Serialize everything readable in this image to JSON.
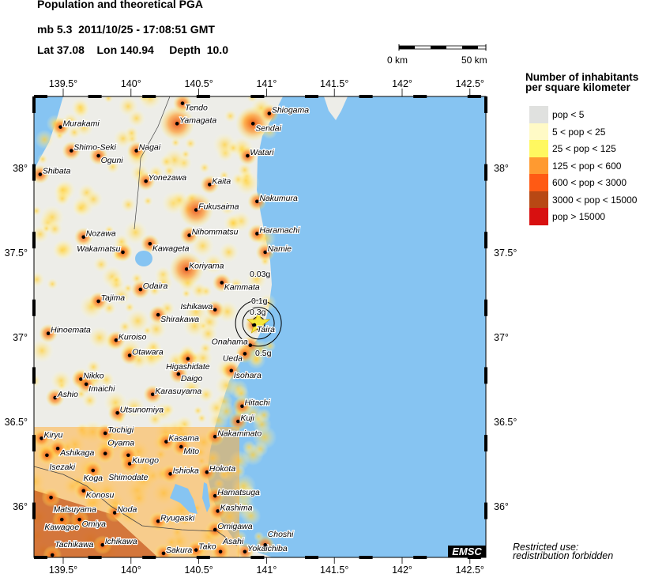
{
  "header": {
    "title": "Population and theoretical PGA",
    "event_line": "mb 5.3  2011/10/25 - 17:08:51 GMT",
    "location_line": "Lat 37.08    Lon 140.94     Depth  10.0"
  },
  "scale_bar": {
    "start_label": "0 km",
    "end_label": "50 km"
  },
  "map": {
    "lon_range": [
      139.28,
      142.62
    ],
    "lat_range": [
      35.69,
      38.42
    ],
    "lon_ticks": [
      139.5,
      140,
      140.5,
      141,
      141.5,
      142,
      142.5
    ],
    "lon_tick_labels": [
      "139.5°",
      "140°",
      "140.5°",
      "141°",
      "141.5°",
      "142°",
      "142.5°"
    ],
    "lat_ticks": [
      38,
      37.5,
      37,
      36.5,
      36
    ],
    "lat_tick_labels": [
      "38°",
      "37.5°",
      "37°",
      "36.5°",
      "36°"
    ],
    "ocean_color": "#86C4F2",
    "land_color": "#EDEDE8",
    "epicenter": {
      "lon": 140.94,
      "lat": 37.08,
      "icon": "star-icon",
      "color": "#F5E63A"
    },
    "pga_contours": [
      "0.03g",
      "0.1g",
      "0.3g",
      "0.5g"
    ],
    "cities": [
      {
        "name": "Murakami",
        "lon": 139.48,
        "lat": 38.24
      },
      {
        "name": "Shimo-Seki",
        "lon": 139.56,
        "lat": 38.1
      },
      {
        "name": "Oguni",
        "lon": 139.76,
        "lat": 38.07
      },
      {
        "name": "Shibata",
        "lon": 139.33,
        "lat": 37.96
      },
      {
        "name": "Nagai",
        "lon": 140.04,
        "lat": 38.1
      },
      {
        "name": "Yonezawa",
        "lon": 140.11,
        "lat": 37.92
      },
      {
        "name": "Tendo",
        "lon": 140.38,
        "lat": 38.38
      },
      {
        "name": "Yamagata",
        "lon": 140.34,
        "lat": 38.26
      },
      {
        "name": "Sendai",
        "lon": 140.9,
        "lat": 38.26
      },
      {
        "name": "Shiogama",
        "lon": 141.02,
        "lat": 38.32
      },
      {
        "name": "Watari",
        "lon": 140.86,
        "lat": 38.07
      },
      {
        "name": "Kaita",
        "lon": 140.58,
        "lat": 37.9
      },
      {
        "name": "Fukusaima",
        "lon": 140.48,
        "lat": 37.75
      },
      {
        "name": "Nakumura",
        "lon": 140.93,
        "lat": 37.8
      },
      {
        "name": "Nozawa",
        "lon": 139.65,
        "lat": 37.59
      },
      {
        "name": "Kawageta",
        "lon": 140.14,
        "lat": 37.55
      },
      {
        "name": "Nihommatsu",
        "lon": 140.43,
        "lat": 37.6
      },
      {
        "name": "Haramachi",
        "lon": 140.93,
        "lat": 37.61
      },
      {
        "name": "Wakamatsu",
        "lon": 139.94,
        "lat": 37.5
      },
      {
        "name": "Namie",
        "lon": 140.99,
        "lat": 37.5
      },
      {
        "name": "Koriyama",
        "lon": 140.41,
        "lat": 37.4
      },
      {
        "name": "Kammata",
        "lon": 140.67,
        "lat": 37.32
      },
      {
        "name": "Odaira",
        "lon": 140.07,
        "lat": 37.28
      },
      {
        "name": "Tajima",
        "lon": 139.76,
        "lat": 37.21
      },
      {
        "name": "Ishikawa",
        "lon": 140.62,
        "lat": 37.16
      },
      {
        "name": "Shirakawa",
        "lon": 140.2,
        "lat": 37.13
      },
      {
        "name": "Hinoemata",
        "lon": 139.39,
        "lat": 37.02
      },
      {
        "name": "Taira",
        "lon": 140.91,
        "lat": 37.07
      },
      {
        "name": "Onahama",
        "lon": 140.88,
        "lat": 36.95
      },
      {
        "name": "Ueda",
        "lon": 140.84,
        "lat": 36.9
      },
      {
        "name": "Kuroiso",
        "lon": 139.89,
        "lat": 36.98
      },
      {
        "name": "Otawara",
        "lon": 139.99,
        "lat": 36.89
      },
      {
        "name": "Higashidate",
        "lon": 140.42,
        "lat": 36.87
      },
      {
        "name": "Daigo",
        "lon": 140.35,
        "lat": 36.78
      },
      {
        "name": "Isohara",
        "lon": 140.74,
        "lat": 36.8
      },
      {
        "name": "Nikko",
        "lon": 139.63,
        "lat": 36.75
      },
      {
        "name": "Imaichi",
        "lon": 139.67,
        "lat": 36.72
      },
      {
        "name": "Ashio",
        "lon": 139.44,
        "lat": 36.64
      },
      {
        "name": "Karasuyama",
        "lon": 140.16,
        "lat": 36.66
      },
      {
        "name": "Hitachi",
        "lon": 140.82,
        "lat": 36.59
      },
      {
        "name": "Utsunomiya",
        "lon": 139.9,
        "lat": 36.55
      },
      {
        "name": "Kuji",
        "lon": 140.79,
        "lat": 36.5
      },
      {
        "name": "Kiryu",
        "lon": 139.34,
        "lat": 36.4
      },
      {
        "name": "Tochigi",
        "lon": 139.81,
        "lat": 36.43
      },
      {
        "name": "Kasama",
        "lon": 140.26,
        "lat": 36.38
      },
      {
        "name": "Mito",
        "lon": 140.37,
        "lat": 36.35
      },
      {
        "name": "Nakaminato",
        "lon": 140.62,
        "lat": 36.41
      },
      {
        "name": "Ashikaga",
        "lon": 139.46,
        "lat": 36.34
      },
      {
        "name": "Isezaki",
        "lon": 139.38,
        "lat": 36.3
      },
      {
        "name": "Oyama",
        "lon": 139.81,
        "lat": 36.31
      },
      {
        "name": "Shimodate",
        "lon": 139.98,
        "lat": 36.3
      },
      {
        "name": "Kurogo",
        "lon": 139.99,
        "lat": 36.25
      },
      {
        "name": "Koga",
        "lon": 139.72,
        "lat": 36.21
      },
      {
        "name": "Ishioka",
        "lon": 140.29,
        "lat": 36.19
      },
      {
        "name": "Hokota",
        "lon": 140.56,
        "lat": 36.2
      },
      {
        "name": "Konosu",
        "lon": 139.65,
        "lat": 36.09
      },
      {
        "name": "Matsuyama",
        "lon": 139.41,
        "lat": 36.05
      },
      {
        "name": "Hamatsuga",
        "lon": 140.62,
        "lat": 36.06
      },
      {
        "name": "Kashima",
        "lon": 140.64,
        "lat": 35.97
      },
      {
        "name": "Noda",
        "lon": 139.88,
        "lat": 35.96
      },
      {
        "name": "Kawagoe",
        "lon": 139.49,
        "lat": 35.92
      },
      {
        "name": "Omiya",
        "lon": 139.62,
        "lat": 35.92
      },
      {
        "name": "Ryugaski",
        "lon": 140.2,
        "lat": 35.91
      },
      {
        "name": "Omigawa",
        "lon": 140.62,
        "lat": 35.86
      },
      {
        "name": "Ichikawa",
        "lon": 139.79,
        "lat": 35.77
      },
      {
        "name": "Tachikawa",
        "lon": 139.42,
        "lat": 35.71
      },
      {
        "name": "Sakura",
        "lon": 140.24,
        "lat": 35.72
      },
      {
        "name": "Tako",
        "lon": 140.48,
        "lat": 35.74
      },
      {
        "name": "Asahi",
        "lon": 140.66,
        "lat": 35.73
      },
      {
        "name": "Yokaichiba",
        "lon": 140.84,
        "lat": 35.73
      },
      {
        "name": "Choshi",
        "lon": 140.99,
        "lat": 35.77
      }
    ],
    "logo": "EMSC"
  },
  "legend": {
    "title_line1": "Number of inhabitants",
    "title_line2": "per square kilometer",
    "items": [
      {
        "label": "pop < 5",
        "color": "#E0E1DF"
      },
      {
        "label": "5 < pop < 25",
        "color": "#FFFAC6"
      },
      {
        "label": "25 < pop < 125",
        "color": "#FFF860"
      },
      {
        "label": "125 < pop < 600",
        "color": "#FF9A30"
      },
      {
        "label": "600 < pop < 3000",
        "color": "#FF5A14"
      },
      {
        "label": "3000 < pop < 15000",
        "color": "#B84814"
      },
      {
        "label": "pop > 15000",
        "color": "#D81010"
      }
    ]
  },
  "notice": {
    "line1": "Restricted use:",
    "line2": "redistribution forbidden"
  }
}
